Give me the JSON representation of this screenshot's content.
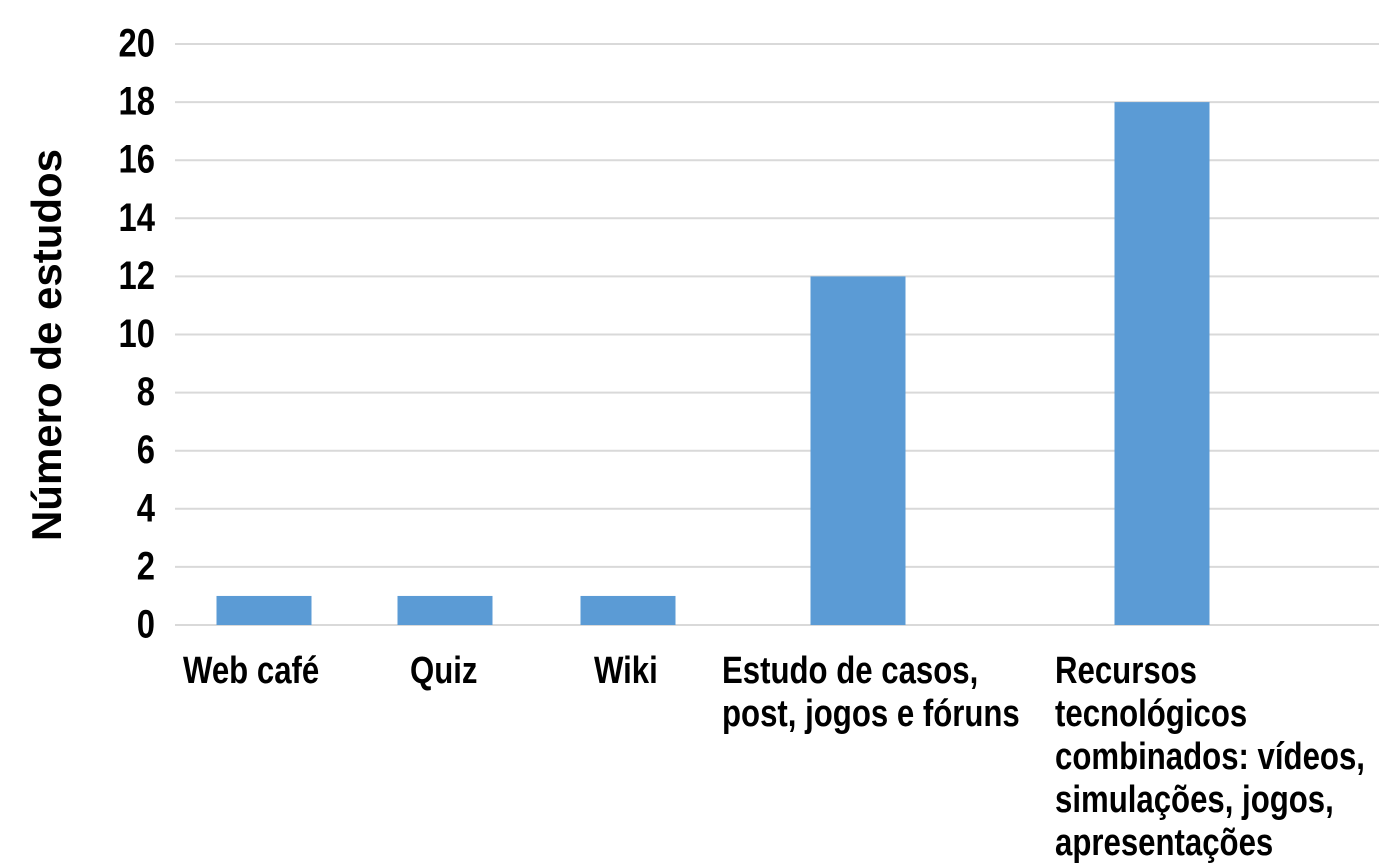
{
  "chart_data": {
    "type": "bar",
    "y_label": "Número de estudos",
    "categories": [
      "Web café",
      "Quiz",
      "Wiki",
      "Estudo de casos, post, jogos e fóruns",
      "Recursos tecnológicos combinados: vídeos, simulações, jogos, apresentações"
    ],
    "values": [
      1,
      1,
      1,
      12,
      18
    ],
    "color": "#5b9bd5",
    "ylim": [
      0,
      20
    ],
    "yticks": [
      0,
      2,
      4,
      6,
      8,
      10,
      12,
      14,
      16,
      18,
      20
    ],
    "grid": true
  }
}
